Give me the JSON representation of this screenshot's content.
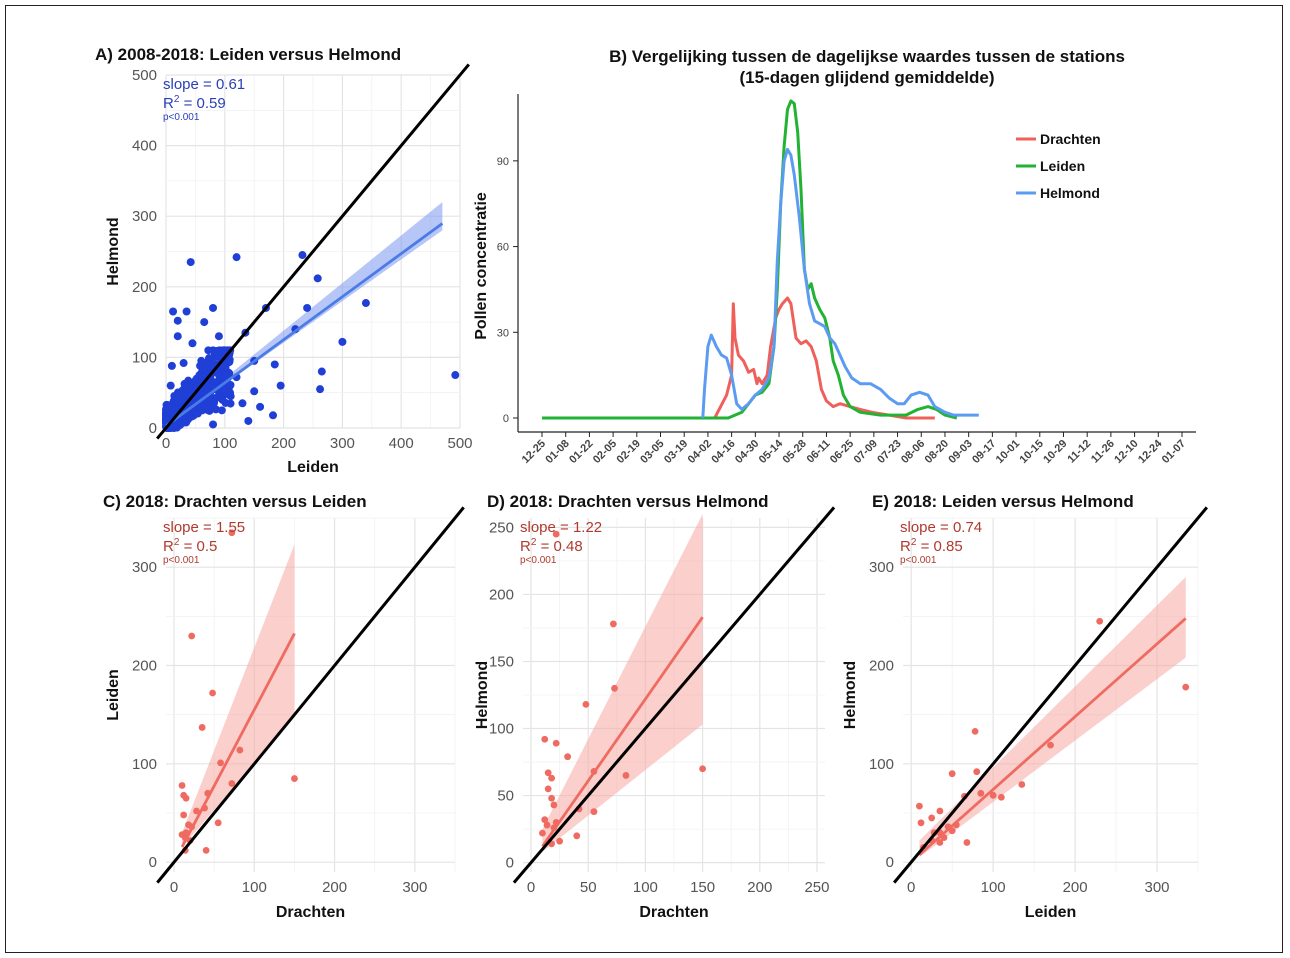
{
  "chart_data": [
    {
      "id": "A",
      "type": "scatter",
      "title": "A) 2008-2018: Leiden versus Helmond",
      "xlabel": "Leiden",
      "ylabel": "Helmond",
      "xlim": [
        0,
        500
      ],
      "ylim": [
        0,
        500
      ],
      "xticks": [
        0,
        100,
        200,
        300,
        400,
        500
      ],
      "yticks": [
        0,
        100,
        200,
        300,
        400,
        500
      ],
      "stats": {
        "slope": "slope = 0.61",
        "r2": "R² = 0.59",
        "p": "p<0.001"
      },
      "color": "#1f3fd6",
      "fit_color": "#4a7be6",
      "fit": {
        "intercept": 3,
        "slope": 0.61,
        "x_end": 470
      },
      "band": {
        "lower_end": 280,
        "upper_end": 320
      },
      "identity_line": true,
      "points": [
        [
          42,
          235
        ],
        [
          120,
          242
        ],
        [
          232,
          245
        ],
        [
          258,
          212
        ],
        [
          80,
          170
        ],
        [
          170,
          170
        ],
        [
          340,
          177
        ],
        [
          300,
          122
        ],
        [
          265,
          80
        ],
        [
          262,
          55
        ],
        [
          492,
          75
        ],
        [
          220,
          140
        ],
        [
          135,
          135
        ],
        [
          182,
          18
        ],
        [
          150,
          52
        ],
        [
          120,
          72
        ],
        [
          90,
          130
        ],
        [
          65,
          150
        ],
        [
          35,
          165
        ],
        [
          12,
          165
        ],
        [
          20,
          152
        ],
        [
          240,
          170
        ],
        [
          20,
          130
        ],
        [
          45,
          120
        ],
        [
          72,
          110
        ],
        [
          100,
          108
        ],
        [
          150,
          95
        ],
        [
          185,
          90
        ],
        [
          60,
          95
        ],
        [
          30,
          92
        ],
        [
          10,
          88
        ],
        [
          8,
          60
        ],
        [
          15,
          40
        ],
        [
          25,
          20
        ],
        [
          40,
          15
        ],
        [
          55,
          30
        ],
        [
          75,
          40
        ],
        [
          85,
          55
        ],
        [
          110,
          45
        ],
        [
          130,
          35
        ],
        [
          160,
          30
        ],
        [
          195,
          60
        ],
        [
          80,
          5
        ],
        [
          95,
          25
        ],
        [
          140,
          10
        ]
      ],
      "cluster": {
        "x_max": 110,
        "y_max": 110,
        "count": 520
      }
    },
    {
      "id": "B",
      "type": "line",
      "title": [
        "B) Vergelijking tussen de dagelijkse waardes tussen de stations",
        "(15-dagen glijdend gemiddelde)"
      ],
      "xlabel": "",
      "ylabel": "Pollen concentratie",
      "ylim": [
        0,
        112
      ],
      "yticks": [
        0,
        30,
        60,
        90
      ],
      "xticklabels": [
        "12-25",
        "01-08",
        "01-22",
        "02-05",
        "02-19",
        "03-05",
        "03-19",
        "04-02",
        "04-16",
        "04-30",
        "05-14",
        "05-28",
        "06-11",
        "06-25",
        "07-09",
        "07-23",
        "08-06",
        "08-20",
        "09-03",
        "09-17",
        "10-01",
        "10-15",
        "10-29",
        "11-12",
        "11-26",
        "12-10",
        "12-24",
        "01-07"
      ],
      "legend_position": "top-right",
      "series": [
        {
          "name": "Drachten",
          "color": "#f0605a",
          "points": [
            [
              102,
              0
            ],
            [
              109,
              8
            ],
            [
              112,
              15
            ],
            [
              113,
              40
            ],
            [
              114,
              28
            ],
            [
              116,
              22
            ],
            [
              119,
              20
            ],
            [
              122,
              16
            ],
            [
              125,
              17
            ],
            [
              127,
              12
            ],
            [
              128,
              14
            ],
            [
              130,
              12
            ],
            [
              133,
              15
            ],
            [
              135,
              25
            ],
            [
              138,
              35
            ],
            [
              140,
              38
            ],
            [
              142,
              40
            ],
            [
              145,
              42
            ],
            [
              147,
              40
            ],
            [
              150,
              28
            ],
            [
              153,
              26
            ],
            [
              156,
              27
            ],
            [
              159,
              25
            ],
            [
              162,
              20
            ],
            [
              165,
              10
            ],
            [
              168,
              6
            ],
            [
              172,
              4
            ],
            [
              176,
              5
            ],
            [
              182,
              4
            ],
            [
              188,
              3
            ],
            [
              195,
              2
            ],
            [
              205,
              1
            ],
            [
              215,
              0
            ],
            [
              225,
              0
            ],
            [
              232,
              0
            ]
          ]
        },
        {
          "name": "Leiden",
          "color": "#22b234",
          "points": [
            [
              0,
              0
            ],
            [
              60,
              0
            ],
            [
              100,
              0
            ],
            [
              110,
              0
            ],
            [
              118,
              2
            ],
            [
              122,
              5
            ],
            [
              126,
              8
            ],
            [
              130,
              9
            ],
            [
              134,
              12
            ],
            [
              137,
              25
            ],
            [
              139,
              45
            ],
            [
              141,
              75
            ],
            [
              143,
              95
            ],
            [
              145,
              108
            ],
            [
              147,
              111
            ],
            [
              149,
              110
            ],
            [
              151,
              100
            ],
            [
              153,
              80
            ],
            [
              155,
              52
            ],
            [
              157,
              45
            ],
            [
              159,
              47
            ],
            [
              161,
              42
            ],
            [
              164,
              38
            ],
            [
              167,
              35
            ],
            [
              170,
              28
            ],
            [
              172,
              20
            ],
            [
              175,
              15
            ],
            [
              178,
              8
            ],
            [
              182,
              4
            ],
            [
              188,
              2
            ],
            [
              200,
              1
            ],
            [
              215,
              1
            ],
            [
              222,
              3
            ],
            [
              228,
              4
            ],
            [
              233,
              3
            ],
            [
              238,
              1
            ],
            [
              245,
              0
            ]
          ]
        },
        {
          "name": "Helmond",
          "color": "#5b9cf2",
          "points": [
            [
              95,
              0
            ],
            [
              96,
              10
            ],
            [
              98,
              25
            ],
            [
              100,
              29
            ],
            [
              103,
              25
            ],
            [
              106,
              22
            ],
            [
              109,
              21
            ],
            [
              112,
              15
            ],
            [
              115,
              5
            ],
            [
              118,
              3
            ],
            [
              122,
              5
            ],
            [
              126,
              8
            ],
            [
              130,
              10
            ],
            [
              134,
              14
            ],
            [
              137,
              25
            ],
            [
              139,
              55
            ],
            [
              141,
              75
            ],
            [
              143,
              90
            ],
            [
              145,
              94
            ],
            [
              147,
              92
            ],
            [
              149,
              85
            ],
            [
              152,
              70
            ],
            [
              155,
              52
            ],
            [
              158,
              40
            ],
            [
              161,
              34
            ],
            [
              164,
              33
            ],
            [
              167,
              32
            ],
            [
              170,
              28
            ],
            [
              173,
              26
            ],
            [
              176,
              22
            ],
            [
              179,
              18
            ],
            [
              183,
              14
            ],
            [
              188,
              12
            ],
            [
              194,
              12
            ],
            [
              200,
              10
            ],
            [
              205,
              7
            ],
            [
              210,
              5
            ],
            [
              214,
              5
            ],
            [
              218,
              8
            ],
            [
              223,
              9
            ],
            [
              228,
              8
            ],
            [
              232,
              4
            ],
            [
              238,
              2
            ],
            [
              243,
              1
            ],
            [
              258,
              1
            ]
          ]
        }
      ]
    },
    {
      "id": "C",
      "type": "scatter",
      "title": "C) 2018: Drachten versus Leiden",
      "xlabel": "Drachten",
      "ylabel": "Leiden",
      "xlim": [
        -10,
        350
      ],
      "ylim": [
        -10,
        350
      ],
      "xticks": [
        0,
        100,
        200,
        300
      ],
      "yticks": [
        0,
        100,
        200,
        300
      ],
      "stats": {
        "slope": "slope = 1.55",
        "r2": "R² = 0.5",
        "p": "p<0.001"
      },
      "color": "#ef6b61",
      "fit": {
        "intercept": 0,
        "slope": 1.55,
        "x_start": 10,
        "x_end": 150
      },
      "band": {
        "x_start": 10,
        "x_end": 150,
        "lower_start": 15,
        "upper_start": 30,
        "lower_end": 148,
        "upper_end": 323
      },
      "identity_line": true,
      "points": [
        [
          72,
          335
        ],
        [
          22,
          230
        ],
        [
          48,
          172
        ],
        [
          35,
          137
        ],
        [
          82,
          114
        ],
        [
          150,
          85
        ],
        [
          10,
          78
        ],
        [
          12,
          68
        ],
        [
          15,
          65
        ],
        [
          58,
          101
        ],
        [
          42,
          70
        ],
        [
          38,
          55
        ],
        [
          28,
          52
        ],
        [
          12,
          48
        ],
        [
          18,
          38
        ],
        [
          22,
          36
        ],
        [
          15,
          30
        ],
        [
          10,
          28
        ],
        [
          14,
          25
        ],
        [
          20,
          22
        ],
        [
          55,
          40
        ],
        [
          40,
          12
        ],
        [
          14,
          12
        ],
        [
          72,
          80
        ]
      ]
    },
    {
      "id": "D",
      "type": "scatter",
      "title": "D) 2018: Drachten versus Helmond",
      "xlabel": "Drachten",
      "ylabel": "Helmond",
      "xlim": [
        -7,
        257
      ],
      "ylim": [
        -7,
        257
      ],
      "xticks": [
        0,
        50,
        100,
        150,
        200,
        250
      ],
      "yticks": [
        0,
        50,
        100,
        150,
        200,
        250
      ],
      "stats": {
        "slope": "slope = 1.22",
        "r2": "R² = 0.48",
        "p": "p<0.001"
      },
      "color": "#ef6b61",
      "fit": {
        "intercept": 0,
        "slope": 1.22,
        "x_start": 10,
        "x_end": 150
      },
      "band": {
        "x_start": 10,
        "x_end": 150,
        "lower_start": 8,
        "upper_start": 25,
        "lower_end": 103,
        "upper_end": 260
      },
      "identity_line": true,
      "points": [
        [
          22,
          245
        ],
        [
          72,
          178
        ],
        [
          73,
          130
        ],
        [
          48,
          118
        ],
        [
          12,
          92
        ],
        [
          22,
          89
        ],
        [
          32,
          79
        ],
        [
          15,
          67
        ],
        [
          18,
          63
        ],
        [
          15,
          55
        ],
        [
          18,
          48
        ],
        [
          20,
          43
        ],
        [
          150,
          70
        ],
        [
          83,
          65
        ],
        [
          55,
          68
        ],
        [
          42,
          40
        ],
        [
          55,
          38
        ],
        [
          22,
          30
        ],
        [
          12,
          32
        ],
        [
          14,
          28
        ],
        [
          20,
          26
        ],
        [
          10,
          22
        ],
        [
          25,
          16
        ],
        [
          40,
          20
        ],
        [
          18,
          14
        ]
      ]
    },
    {
      "id": "E",
      "type": "scatter",
      "title": "E) 2018: Leiden versus Helmond",
      "xlabel": "Leiden",
      "ylabel": "Helmond",
      "xlim": [
        -10,
        350
      ],
      "ylim": [
        -10,
        350
      ],
      "xticks": [
        0,
        100,
        200,
        300
      ],
      "yticks": [
        0,
        100,
        200,
        300
      ],
      "stats": {
        "slope": "slope = 0.74",
        "r2": "R² = 0.85",
        "p": "p<0.001"
      },
      "color": "#ef6b61",
      "fit": {
        "intercept": 0,
        "slope": 0.74,
        "x_start": 10,
        "x_end": 335
      },
      "band": {
        "x_start": 10,
        "x_end": 335,
        "lower_start": 5,
        "upper_start": 22,
        "lower_end": 208,
        "upper_end": 290
      },
      "identity_line": true,
      "points": [
        [
          230,
          245
        ],
        [
          335,
          178
        ],
        [
          170,
          119
        ],
        [
          78,
          133
        ],
        [
          50,
          90
        ],
        [
          80,
          92
        ],
        [
          10,
          57
        ],
        [
          12,
          40
        ],
        [
          25,
          45
        ],
        [
          35,
          52
        ],
        [
          65,
          67
        ],
        [
          85,
          70
        ],
        [
          100,
          68
        ],
        [
          110,
          66
        ],
        [
          135,
          79
        ],
        [
          45,
          36
        ],
        [
          50,
          32
        ],
        [
          55,
          38
        ],
        [
          28,
          30
        ],
        [
          35,
          30
        ],
        [
          40,
          25
        ],
        [
          25,
          22
        ],
        [
          35,
          20
        ],
        [
          68,
          20
        ],
        [
          15,
          15
        ]
      ]
    }
  ]
}
